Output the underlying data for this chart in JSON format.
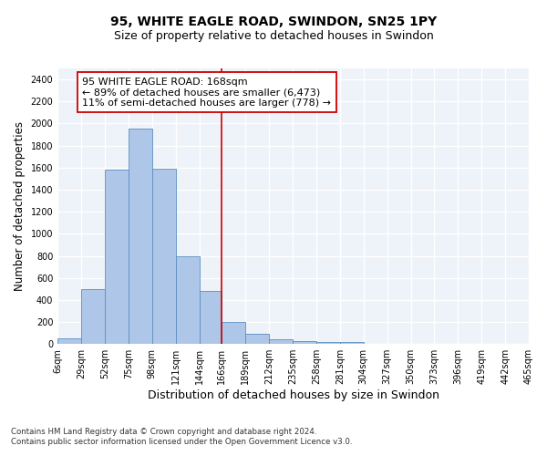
{
  "title": "95, WHITE EAGLE ROAD, SWINDON, SN25 1PY",
  "subtitle": "Size of property relative to detached houses in Swindon",
  "xlabel": "Distribution of detached houses by size in Swindon",
  "ylabel": "Number of detached properties",
  "footnote1": "Contains HM Land Registry data © Crown copyright and database right 2024.",
  "footnote2": "Contains public sector information licensed under the Open Government Licence v3.0.",
  "bar_edges": [
    6,
    29,
    52,
    75,
    98,
    121,
    144,
    166,
    189,
    212,
    235,
    258,
    281,
    304,
    327,
    350,
    373,
    396,
    419,
    442,
    465
  ],
  "bar_heights": [
    50,
    500,
    1580,
    1950,
    1590,
    800,
    480,
    200,
    90,
    40,
    30,
    20,
    15,
    5,
    3,
    2,
    1,
    1,
    1,
    1
  ],
  "bar_color": "#aec6e8",
  "bar_edgecolor": "#5a8fc0",
  "vline_x": 166,
  "vline_color": "#cc0000",
  "annotation_text": "95 WHITE EAGLE ROAD: 168sqm\n← 89% of detached houses are smaller (6,473)\n11% of semi-detached houses are larger (778) →",
  "annotation_box_edgecolor": "#cc0000",
  "ylim": [
    0,
    2500
  ],
  "yticks": [
    0,
    200,
    400,
    600,
    800,
    1000,
    1200,
    1400,
    1600,
    1800,
    2000,
    2200,
    2400
  ],
  "x_tick_labels": [
    "6sqm",
    "29sqm",
    "52sqm",
    "75sqm",
    "98sqm",
    "121sqm",
    "144sqm",
    "166sqm",
    "189sqm",
    "212sqm",
    "235sqm",
    "258sqm",
    "281sqm",
    "304sqm",
    "327sqm",
    "350sqm",
    "373sqm",
    "396sqm",
    "419sqm",
    "442sqm",
    "465sqm"
  ],
  "background_color": "#eef2f9",
  "grid_color": "#ffffff",
  "title_fontsize": 10,
  "subtitle_fontsize": 9,
  "annotation_fontsize": 8,
  "tick_fontsize": 7,
  "ylabel_fontsize": 8.5,
  "xlabel_fontsize": 9
}
